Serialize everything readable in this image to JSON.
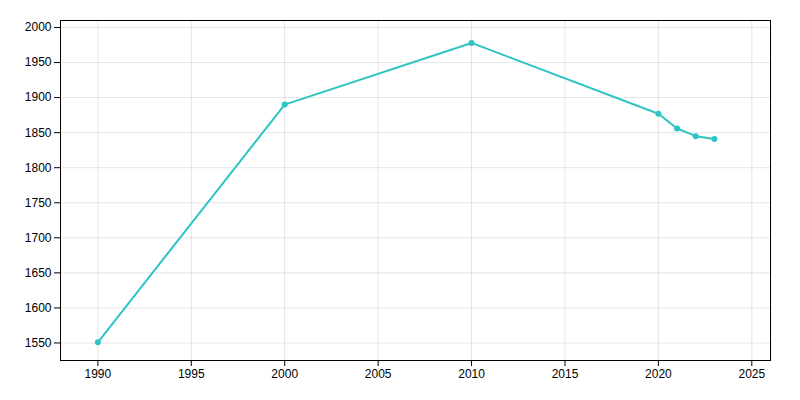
{
  "chart_data": {
    "type": "line",
    "x": [
      1990,
      2000,
      2010,
      2020,
      2021,
      2022,
      2023
    ],
    "values": [
      1551,
      1890,
      1978,
      1877,
      1856,
      1845,
      1841
    ],
    "color": "#2EC4C4",
    "marker": "circle",
    "xlim": [
      1988,
      2026
    ],
    "ylim": [
      1525,
      2010
    ],
    "xticks": [
      1990,
      1995,
      2000,
      2005,
      2010,
      2015,
      2020,
      2025
    ],
    "yticks": [
      1550,
      1600,
      1650,
      1700,
      1750,
      1800,
      1850,
      1900,
      1950,
      2000
    ],
    "grid": true
  }
}
